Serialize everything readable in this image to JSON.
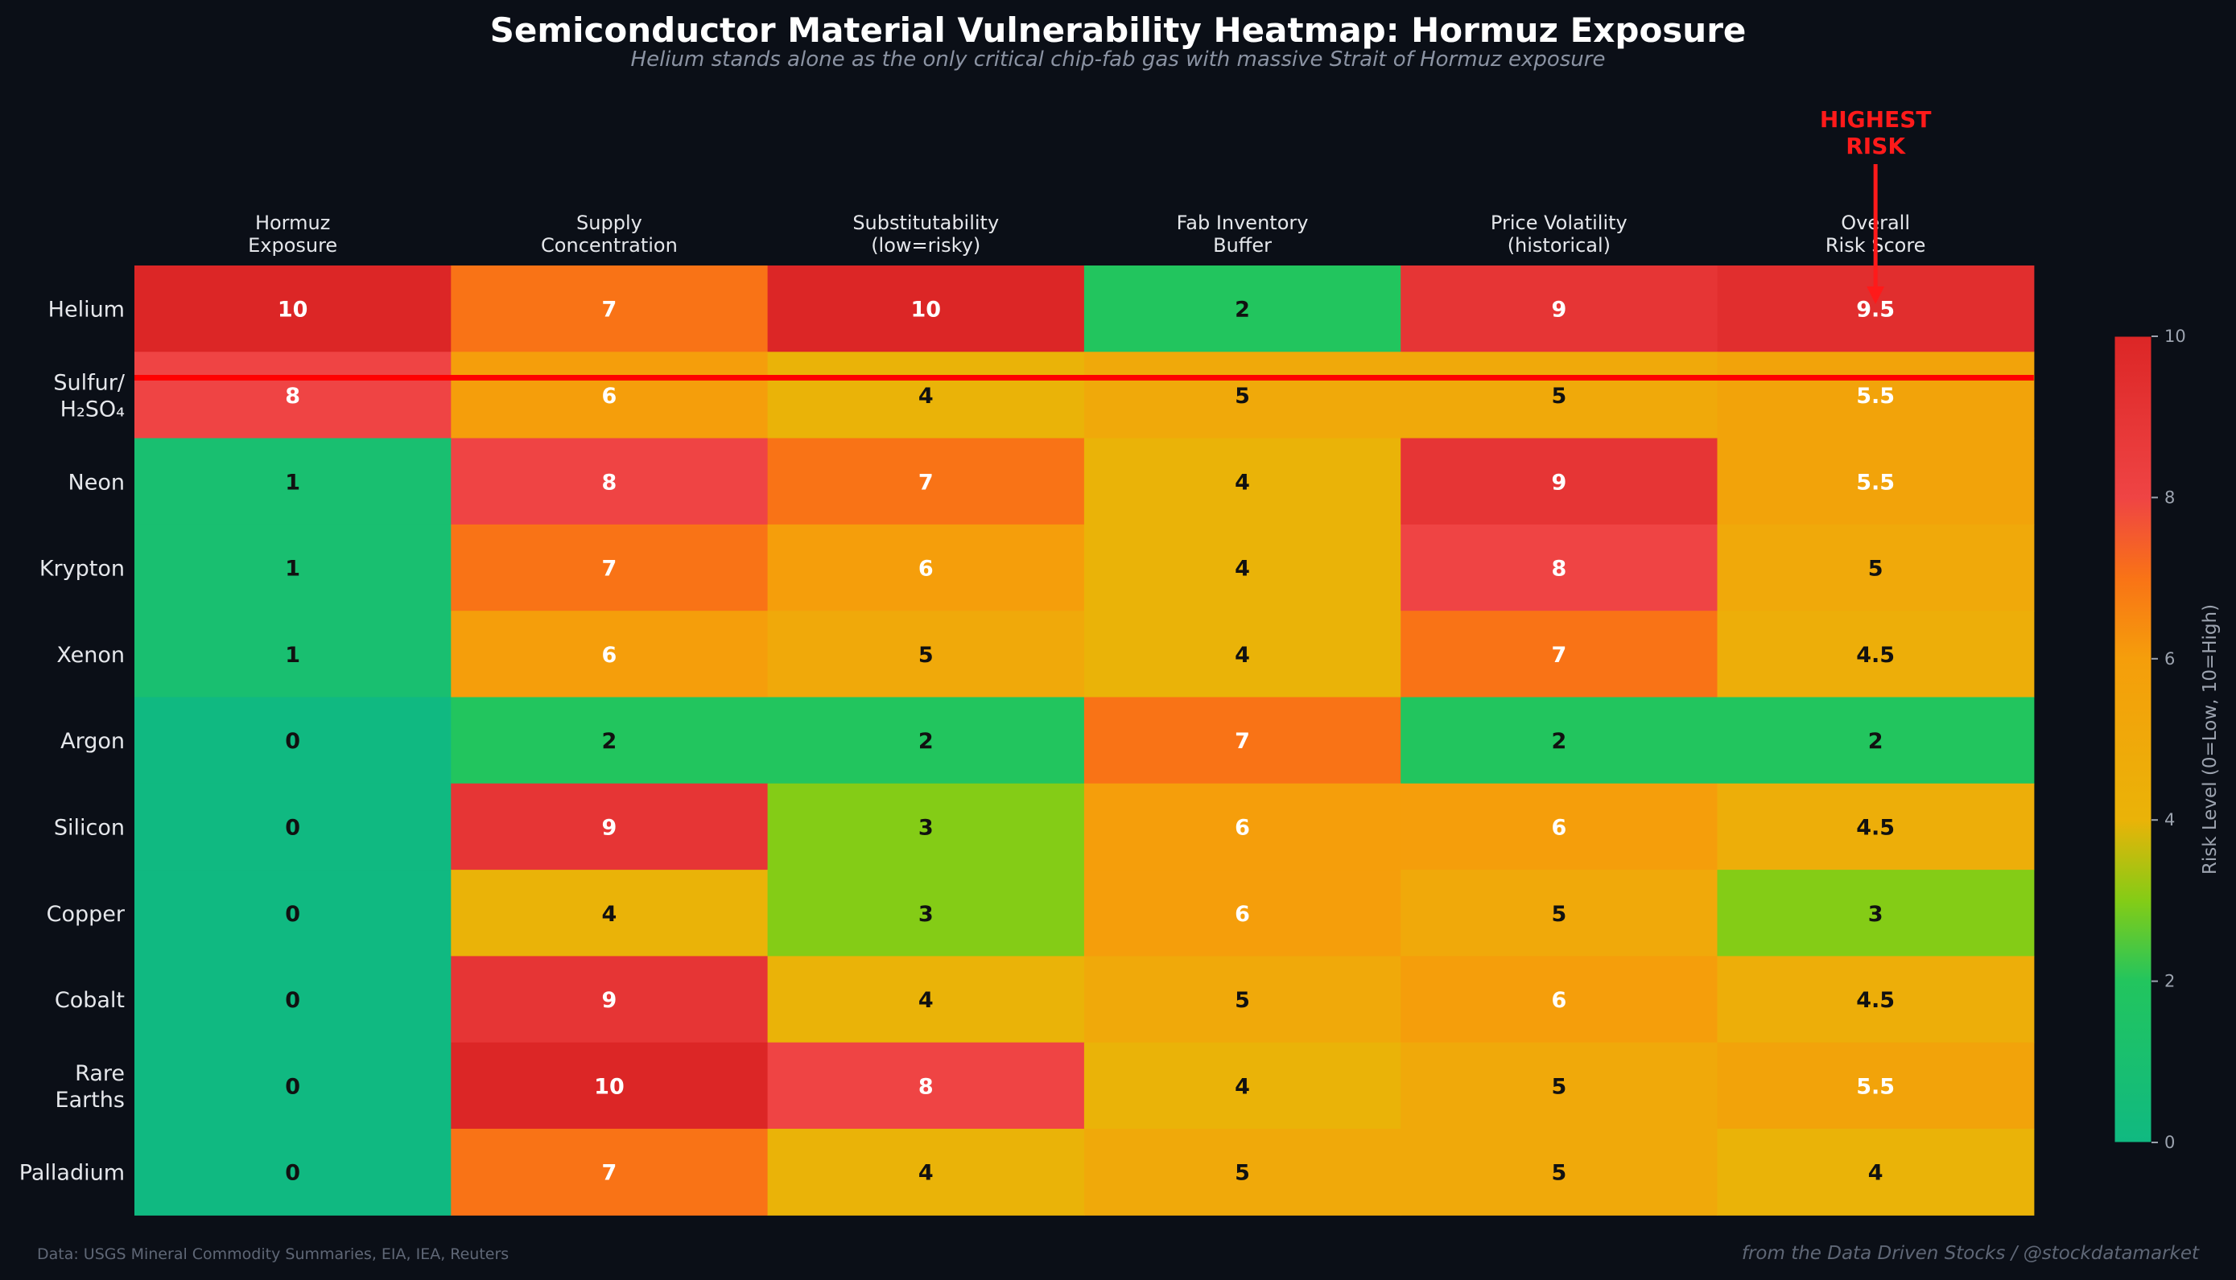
{
  "chart_data": {
    "type": "heatmap",
    "title": "Semiconductor Material Vulnerability Heatmap: Hormuz Exposure",
    "subtitle": "Helium stands alone as the only critical chip-fab gas with massive Strait of Hormuz exposure",
    "columns": [
      [
        "Hormuz",
        "Exposure"
      ],
      [
        "Supply",
        "Concentration"
      ],
      [
        "Substitutability",
        "(low=risky)"
      ],
      [
        "Fab Inventory",
        "Buffer"
      ],
      [
        "Price Volatility",
        "(historical)"
      ],
      [
        "Overall",
        "Risk Score"
      ]
    ],
    "rows": [
      {
        "label": [
          "Helium"
        ],
        "values": [
          10,
          7,
          10,
          2,
          9,
          9.5
        ]
      },
      {
        "label": [
          "Sulfur/",
          "H₂SO₄"
        ],
        "values": [
          8,
          6,
          4,
          5,
          5,
          5.5
        ]
      },
      {
        "label": [
          "Neon"
        ],
        "values": [
          1,
          8,
          7,
          4,
          9,
          5.5
        ]
      },
      {
        "label": [
          "Krypton"
        ],
        "values": [
          1,
          7,
          6,
          4,
          8,
          5
        ]
      },
      {
        "label": [
          "Xenon"
        ],
        "values": [
          1,
          6,
          5,
          4,
          7,
          4.5
        ]
      },
      {
        "label": [
          "Argon"
        ],
        "values": [
          0,
          2,
          2,
          7,
          2,
          2
        ]
      },
      {
        "label": [
          "Silicon"
        ],
        "values": [
          0,
          9,
          3,
          6,
          6,
          4.5
        ]
      },
      {
        "label": [
          "Copper"
        ],
        "values": [
          0,
          4,
          3,
          6,
          5,
          3
        ]
      },
      {
        "label": [
          "Cobalt"
        ],
        "values": [
          0,
          9,
          4,
          5,
          6,
          4.5
        ]
      },
      {
        "label": [
          "Rare",
          "Earths"
        ],
        "values": [
          0,
          10,
          8,
          4,
          5,
          5.5
        ]
      },
      {
        "label": [
          "Palladium"
        ],
        "values": [
          0,
          7,
          4,
          5,
          5,
          4
        ]
      }
    ],
    "colorbar": {
      "label": "Risk Level (0=Low, 10=High)",
      "ticks": [
        "0",
        "2",
        "4",
        "6",
        "8",
        "10"
      ],
      "range": [
        0,
        10
      ],
      "stops": [
        {
          "v": 0,
          "c": "#10b981"
        },
        {
          "v": 2,
          "c": "#22c55e"
        },
        {
          "v": 3,
          "c": "#84cc16"
        },
        {
          "v": 4,
          "c": "#eab308"
        },
        {
          "v": 6,
          "c": "#f59e0b"
        },
        {
          "v": 7,
          "c": "#f97316"
        },
        {
          "v": 8,
          "c": "#ef4444"
        },
        {
          "v": 10,
          "c": "#dc2626"
        }
      ]
    },
    "annotation": {
      "text": [
        "HIGHEST",
        "RISK"
      ],
      "color": "#ff1a1a",
      "target_row": 0,
      "target_col": 5
    },
    "highlight_line_color": "#ff0000"
  },
  "footer": {
    "source": "Data: USGS Mineral Commodity Summaries, EIA, IEA, Reuters",
    "credit": "from the Data Driven Stocks / @stockdatamarket"
  }
}
